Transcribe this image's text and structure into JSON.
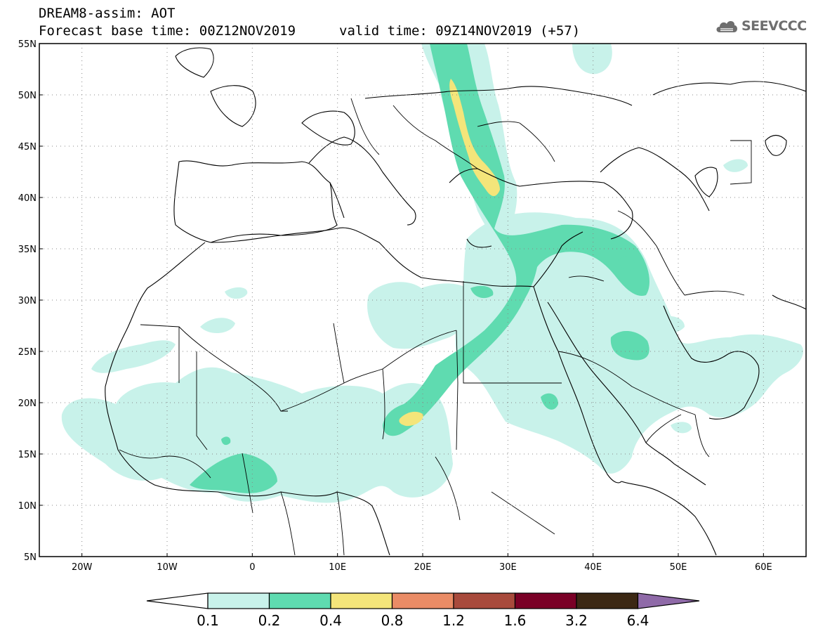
{
  "header": {
    "title": "DREAM8-assim: AOT",
    "base_time": "Forecast base time: 00Z12NOV2019",
    "valid_time": "valid time: 09Z14NOV2019 (+57)",
    "logo_text": "SEEVCCC"
  },
  "map": {
    "lat_labels": [
      "55N",
      "50N",
      "45N",
      "40N",
      "35N",
      "30N",
      "25N",
      "20N",
      "15N",
      "10N",
      "5N"
    ],
    "lon_labels": [
      "20W",
      "10W",
      "0",
      "10E",
      "20E",
      "30E",
      "40E",
      "50E",
      "60E"
    ],
    "gridlines": "dotted",
    "colors": {
      "c01": "#c8f2ea",
      "c02": "#5fdbb0",
      "c04": "#f4e57a"
    }
  },
  "colorbar": {
    "labels": [
      "0.1",
      "0.2",
      "0.4",
      "0.8",
      "1.2",
      "1.6",
      "3.2",
      "6.4"
    ],
    "colors": [
      "#c8f2ea",
      "#5fdbb0",
      "#f4e57a",
      "#ea8c66",
      "#a84a3c",
      "#7a0026",
      "#3c2814",
      "#8f6aa8"
    ],
    "under_color": "#ffffff"
  }
}
